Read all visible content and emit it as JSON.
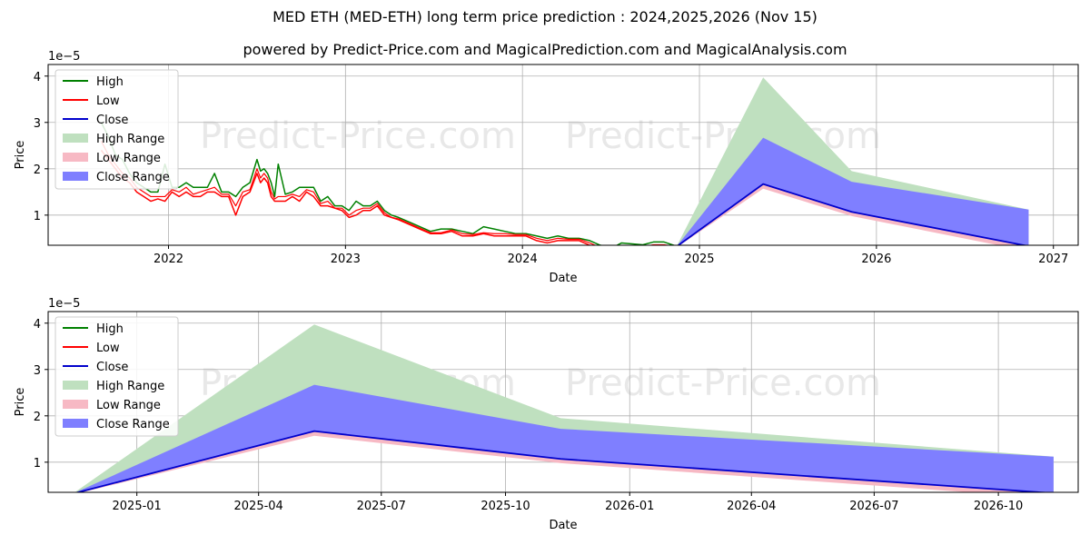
{
  "title_line1": "MED ETH (MED-ETH) long term price prediction : 2024,2025,2026 (Nov 15)",
  "title_line2": "powered by Predict-Price.com and MagicalPrediction.com and MagicalAnalysis.com",
  "watermark": "Predict-Price.com",
  "colors": {
    "high": "#008000",
    "low": "#ff0000",
    "close": "#0000cc",
    "high_range": "#bfe0bf",
    "low_range": "#f7b9c4",
    "close_range": "#7f7fff"
  },
  "chart_data": [
    {
      "type": "line",
      "xlabel": "Date",
      "ylabel": "Price",
      "exponent_label": "1e−5",
      "xlim": [
        2021.32,
        2027.14
      ],
      "ylim": [
        0.35,
        4.25
      ],
      "xticks": [
        {
          "value": 2022.0,
          "label": "2022"
        },
        {
          "value": 2023.0,
          "label": "2023"
        },
        {
          "value": 2024.0,
          "label": "2024"
        },
        {
          "value": 2025.0,
          "label": "2025"
        },
        {
          "value": 2026.0,
          "label": "2026"
        },
        {
          "value": 2027.0,
          "label": "2027"
        }
      ],
      "yticks": [
        {
          "value": 1,
          "label": "1"
        },
        {
          "value": 2,
          "label": "2"
        },
        {
          "value": 3,
          "label": "3"
        },
        {
          "value": 4,
          "label": "4"
        }
      ],
      "legend": {
        "position": "top-left",
        "entries": [
          {
            "label": "High",
            "kind": "line",
            "color_key": "high"
          },
          {
            "label": "Low",
            "kind": "line",
            "color_key": "low"
          },
          {
            "label": "Close",
            "kind": "line",
            "color_key": "close"
          },
          {
            "label": "High Range",
            "kind": "patch",
            "color_key": "high_range"
          },
          {
            "label": "Low Range",
            "kind": "patch",
            "color_key": "low_range"
          },
          {
            "label": "Close Range",
            "kind": "patch",
            "color_key": "close_range"
          }
        ]
      },
      "history": {
        "x": [
          2021.62,
          2021.66,
          2021.7,
          2021.74,
          2021.78,
          2021.82,
          2021.86,
          2021.9,
          2021.94,
          2021.98,
          2022.02,
          2022.06,
          2022.1,
          2022.14,
          2022.18,
          2022.22,
          2022.26,
          2022.3,
          2022.34,
          2022.38,
          2022.42,
          2022.46,
          2022.5,
          2022.52,
          2022.54,
          2022.56,
          2022.58,
          2022.6,
          2022.62,
          2022.66,
          2022.7,
          2022.74,
          2022.78,
          2022.82,
          2022.86,
          2022.9,
          2022.94,
          2022.98,
          2023.02,
          2023.06,
          2023.1,
          2023.14,
          2023.18,
          2023.22,
          2023.26,
          2023.3,
          2023.36,
          2023.42,
          2023.48,
          2023.54,
          2023.6,
          2023.66,
          2023.72,
          2023.78,
          2023.84,
          2023.9,
          2023.96,
          2024.02,
          2024.08,
          2024.14,
          2024.2,
          2024.26,
          2024.32,
          2024.38,
          2024.44,
          2024.48,
          2024.52,
          2024.56,
          2024.62,
          2024.68,
          2024.74,
          2024.8,
          2024.87
        ],
        "high": [
          3.0,
          2.7,
          2.3,
          2.2,
          1.9,
          1.7,
          1.6,
          1.5,
          1.5,
          2.1,
          1.6,
          1.6,
          1.7,
          1.6,
          1.6,
          1.6,
          1.9,
          1.5,
          1.5,
          1.4,
          1.6,
          1.7,
          2.2,
          1.95,
          2.0,
          1.9,
          1.7,
          1.4,
          2.1,
          1.45,
          1.5,
          1.6,
          1.6,
          1.6,
          1.3,
          1.4,
          1.2,
          1.2,
          1.1,
          1.3,
          1.2,
          1.2,
          1.3,
          1.1,
          1.0,
          0.95,
          0.85,
          0.75,
          0.65,
          0.7,
          0.7,
          0.65,
          0.6,
          0.75,
          0.7,
          0.65,
          0.6,
          0.6,
          0.55,
          0.5,
          0.55,
          0.5,
          0.5,
          0.45,
          0.35,
          0.32,
          0.32,
          0.4,
          0.38,
          0.36,
          0.42,
          0.42,
          0.33
        ],
        "low": [
          2.4,
          2.2,
          2.0,
          1.8,
          1.7,
          1.5,
          1.4,
          1.3,
          1.35,
          1.3,
          1.5,
          1.4,
          1.5,
          1.4,
          1.4,
          1.5,
          1.5,
          1.4,
          1.4,
          1.0,
          1.4,
          1.5,
          1.9,
          1.7,
          1.8,
          1.7,
          1.4,
          1.3,
          1.3,
          1.3,
          1.4,
          1.3,
          1.5,
          1.4,
          1.2,
          1.2,
          1.15,
          1.1,
          0.95,
          1.0,
          1.1,
          1.1,
          1.2,
          1.0,
          0.95,
          0.9,
          0.8,
          0.7,
          0.6,
          0.6,
          0.65,
          0.55,
          0.55,
          0.6,
          0.55,
          0.55,
          0.55,
          0.55,
          0.45,
          0.4,
          0.45,
          0.45,
          0.45,
          0.35,
          0.28,
          0.25,
          0.25,
          0.3,
          0.3,
          0.3,
          0.35,
          0.35,
          0.3
        ],
        "close": [
          2.6,
          2.3,
          2.1,
          1.9,
          1.8,
          1.6,
          1.5,
          1.4,
          1.4,
          1.4,
          1.55,
          1.5,
          1.6,
          1.45,
          1.5,
          1.55,
          1.6,
          1.45,
          1.45,
          1.2,
          1.5,
          1.55,
          2.0,
          1.8,
          1.9,
          1.8,
          1.5,
          1.35,
          1.4,
          1.4,
          1.45,
          1.4,
          1.55,
          1.5,
          1.25,
          1.3,
          1.15,
          1.15,
          1.0,
          1.1,
          1.15,
          1.15,
          1.25,
          1.05,
          0.95,
          0.92,
          0.82,
          0.72,
          0.62,
          0.62,
          0.68,
          0.6,
          0.58,
          0.62,
          0.6,
          0.6,
          0.58,
          0.58,
          0.5,
          0.45,
          0.5,
          0.48,
          0.48,
          0.4,
          0.3,
          0.28,
          0.28,
          0.32,
          0.32,
          0.32,
          0.36,
          0.36,
          0.32
        ]
      },
      "forecast": {
        "x": [
          2024.87,
          2025.36,
          2025.86,
          2026.86
        ],
        "high_range": {
          "upper": [
            0.32,
            3.97,
            1.95,
            1.12
          ],
          "lower": [
            0.32,
            1.65,
            1.05,
            0.3
          ]
        },
        "low_range": {
          "upper": [
            0.32,
            1.68,
            1.08,
            0.33
          ],
          "lower": [
            0.3,
            1.57,
            0.98,
            0.22
          ]
        },
        "close_range": {
          "upper": [
            0.32,
            2.67,
            1.72,
            1.12
          ],
          "lower": [
            0.32,
            1.68,
            1.08,
            0.33
          ]
        },
        "close": [
          0.32,
          1.67,
          1.07,
          0.33
        ]
      }
    },
    {
      "type": "line",
      "xlabel": "Date",
      "ylabel": "Price",
      "exponent_label": "1e−5",
      "xlim": [
        2024.82,
        2026.91
      ],
      "ylim": [
        0.35,
        4.25
      ],
      "xticks": [
        {
          "value": 2025.0,
          "label": "2025-01"
        },
        {
          "value": 2025.247,
          "label": "2025-04"
        },
        {
          "value": 2025.496,
          "label": "2025-07"
        },
        {
          "value": 2025.748,
          "label": "2025-10"
        },
        {
          "value": 2026.0,
          "label": "2026-01"
        },
        {
          "value": 2026.247,
          "label": "2026-04"
        },
        {
          "value": 2026.496,
          "label": "2026-07"
        },
        {
          "value": 2026.748,
          "label": "2026-10"
        }
      ],
      "yticks": [
        {
          "value": 1,
          "label": "1"
        },
        {
          "value": 2,
          "label": "2"
        },
        {
          "value": 3,
          "label": "3"
        },
        {
          "value": 4,
          "label": "4"
        }
      ],
      "legend": {
        "position": "top-left",
        "entries": [
          {
            "label": "High",
            "kind": "line",
            "color_key": "high"
          },
          {
            "label": "Low",
            "kind": "line",
            "color_key": "low"
          },
          {
            "label": "Close",
            "kind": "line",
            "color_key": "close"
          },
          {
            "label": "High Range",
            "kind": "patch",
            "color_key": "high_range"
          },
          {
            "label": "Low Range",
            "kind": "patch",
            "color_key": "low_range"
          },
          {
            "label": "Close Range",
            "kind": "patch",
            "color_key": "close_range"
          }
        ]
      },
      "history": null,
      "forecast": {
        "x": [
          2024.87,
          2025.36,
          2025.86,
          2026.86
        ],
        "high_range": {
          "upper": [
            0.32,
            3.97,
            1.95,
            1.12
          ],
          "lower": [
            0.32,
            1.65,
            1.05,
            0.3
          ]
        },
        "low_range": {
          "upper": [
            0.32,
            1.68,
            1.08,
            0.33
          ],
          "lower": [
            0.3,
            1.57,
            0.98,
            0.22
          ]
        },
        "close_range": {
          "upper": [
            0.32,
            2.67,
            1.72,
            1.12
          ],
          "lower": [
            0.32,
            1.68,
            1.08,
            0.33
          ]
        },
        "close": [
          0.32,
          1.67,
          1.07,
          0.33
        ]
      }
    }
  ]
}
